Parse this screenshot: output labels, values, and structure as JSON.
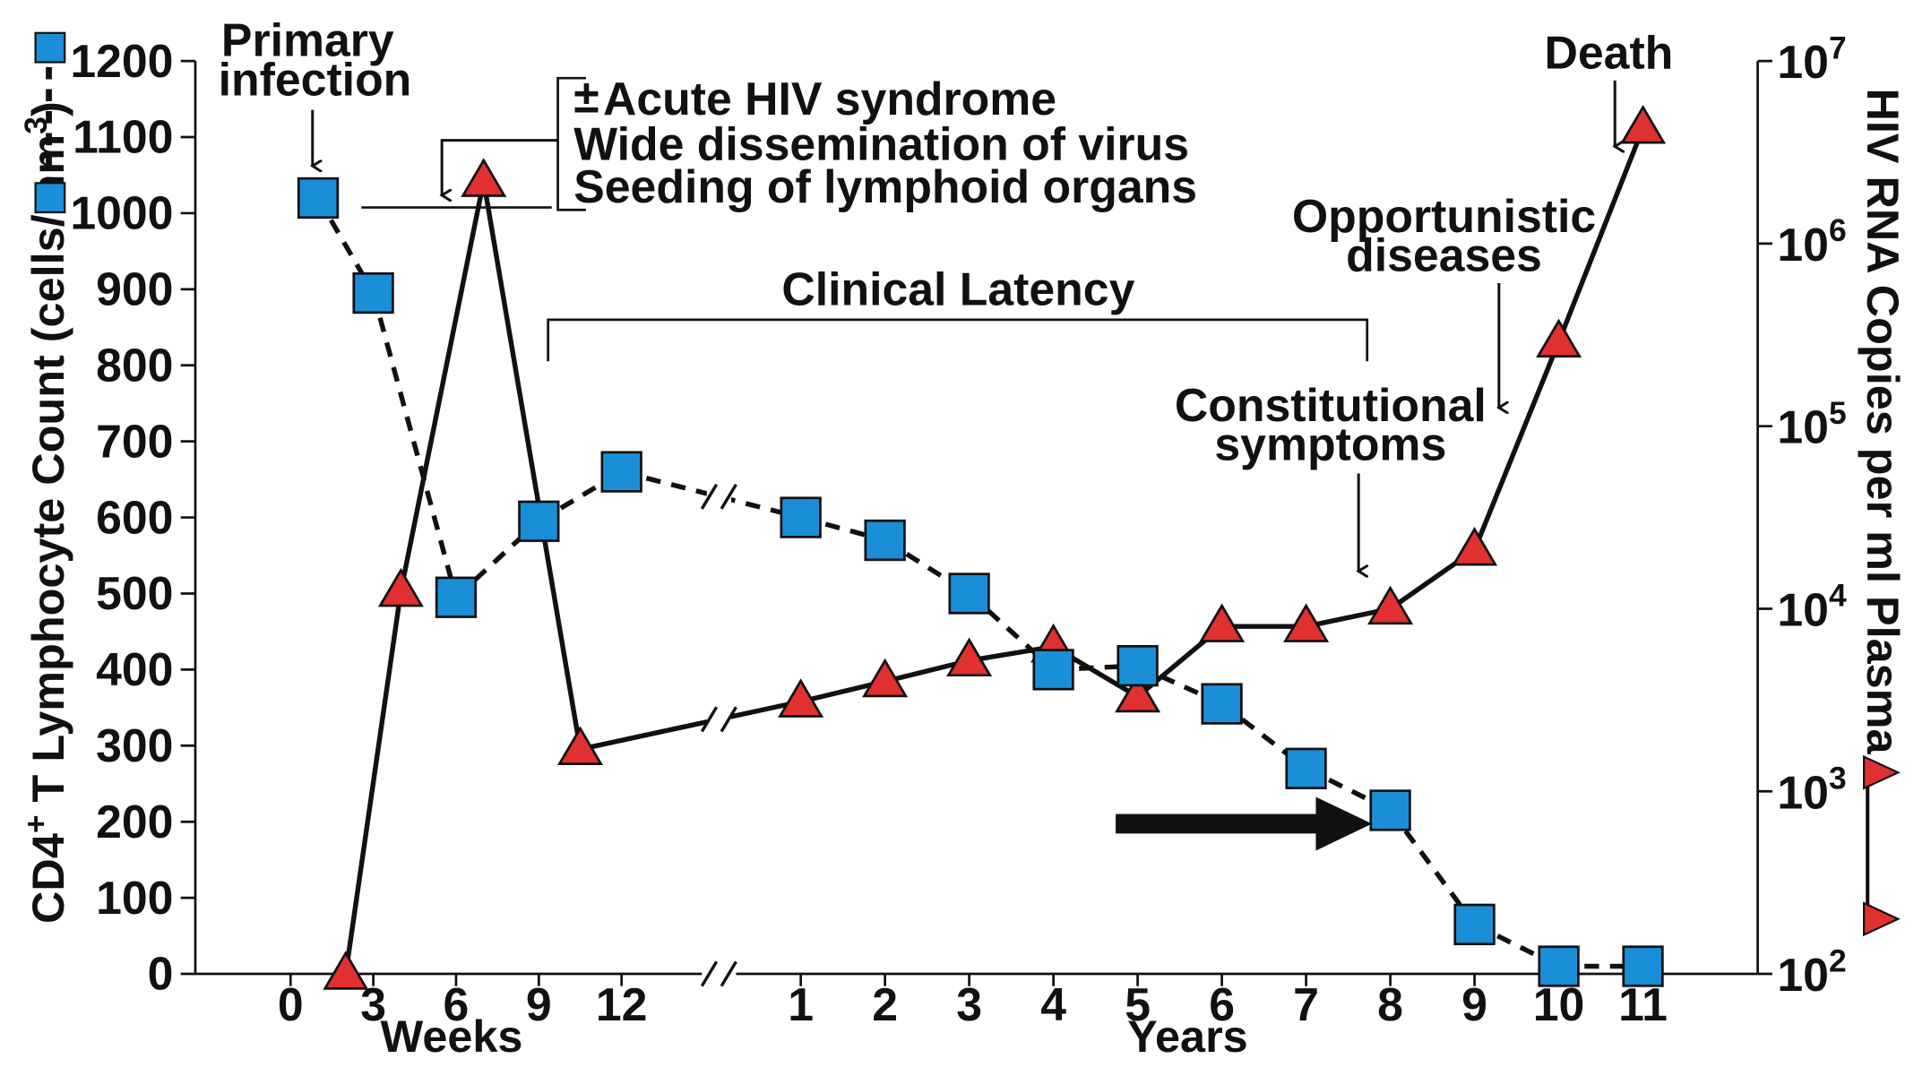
{
  "chart_data": {
    "type": "line",
    "left_axis": {
      "label_main": "CD4",
      "label_sup": "+",
      "label_mid": " T Lymphocyte Count (cells/mm",
      "label_sup2": "3",
      "label_end": ")",
      "ticks": [
        0,
        100,
        200,
        300,
        400,
        500,
        600,
        700,
        800,
        900,
        1000,
        1100,
        1200
      ],
      "ylim": [
        0,
        1200
      ]
    },
    "right_axis": {
      "label": "HIV RNA Copies per ml Plasma",
      "scale": "log",
      "ticks": [
        {
          "value": 100,
          "base": "10",
          "exp": "2"
        },
        {
          "value": 1000,
          "base": "10",
          "exp": "3"
        },
        {
          "value": 10000,
          "base": "10",
          "exp": "4"
        },
        {
          "value": 100000,
          "base": "10",
          "exp": "5"
        },
        {
          "value": 1000000,
          "base": "10",
          "exp": "6"
        },
        {
          "value": 10000000,
          "base": "10",
          "exp": "7"
        }
      ],
      "ylim": [
        100,
        10000000
      ]
    },
    "x_axis": {
      "weeks_label": "Weeks",
      "years_label": "Years",
      "week_ticks": [
        "0",
        "3",
        "6",
        "9",
        "12"
      ],
      "year_ticks": [
        "1",
        "2",
        "3",
        "4",
        "5",
        "6",
        "7",
        "8",
        "9",
        "10",
        "11"
      ],
      "axis_break": "//"
    },
    "series": [
      {
        "role": "cd4",
        "marker": "square",
        "color": "#1a8fd8",
        "line_style": "dashed",
        "points": [
          {
            "segment": "weeks",
            "x": 1,
            "y": 1020
          },
          {
            "segment": "weeks",
            "x": 3,
            "y": 895
          },
          {
            "segment": "weeks",
            "x": 6,
            "y": 495
          },
          {
            "segment": "weeks",
            "x": 9,
            "y": 595
          },
          {
            "segment": "weeks",
            "x": 12,
            "y": 660
          },
          {
            "segment": "years",
            "x": 1,
            "y": 600
          },
          {
            "segment": "years",
            "x": 2,
            "y": 570
          },
          {
            "segment": "years",
            "x": 3,
            "y": 500
          },
          {
            "segment": "years",
            "x": 4,
            "y": 400
          },
          {
            "segment": "years",
            "x": 5,
            "y": 405
          },
          {
            "segment": "years",
            "x": 6,
            "y": 355
          },
          {
            "segment": "years",
            "x": 7,
            "y": 270
          },
          {
            "segment": "years",
            "x": 8,
            "y": 215
          },
          {
            "segment": "years",
            "x": 9,
            "y": 65
          },
          {
            "segment": "years",
            "x": 10,
            "y": 10
          },
          {
            "segment": "years",
            "x": 11,
            "y": 10
          }
        ]
      },
      {
        "role": "hiv_rna",
        "marker": "triangle",
        "color": "#e03030",
        "line_style": "solid",
        "points": [
          {
            "segment": "weeks",
            "x": 2,
            "y": 100
          },
          {
            "segment": "weeks",
            "x": 4,
            "y": 12500
          },
          {
            "segment": "weeks",
            "x": 7,
            "y": 2200000
          },
          {
            "segment": "weeks",
            "x": 10.5,
            "y": 1700
          },
          {
            "segment": "years",
            "x": 1,
            "y": 3100
          },
          {
            "segment": "years",
            "x": 2,
            "y": 4000
          },
          {
            "segment": "years",
            "x": 3,
            "y": 5200
          },
          {
            "segment": "years",
            "x": 4,
            "y": 6200
          },
          {
            "segment": "years",
            "x": 5,
            "y": 3300
          },
          {
            "segment": "years",
            "x": 6,
            "y": 8000
          },
          {
            "segment": "years",
            "x": 7,
            "y": 8000
          },
          {
            "segment": "years",
            "x": 8,
            "y": 10000
          },
          {
            "segment": "years",
            "x": 9,
            "y": 21000
          },
          {
            "segment": "years",
            "x": 10,
            "y": 290000
          },
          {
            "segment": "years",
            "x": 11,
            "y": 4300000
          }
        ]
      }
    ],
    "annotations": {
      "primary_infection": [
        "Primary",
        "infection"
      ],
      "acute_pm": "±",
      "acute_lines": [
        "Acute HIV syndrome",
        "Wide dissemination of virus",
        "Seeding of lymphoid organs"
      ],
      "clinical_latency": "Clinical Latency",
      "constitutional": [
        "Constitutional",
        "symptoms"
      ],
      "opportunistic": [
        "Opportunistic",
        "diseases"
      ],
      "death": "Death"
    },
    "grid": false
  }
}
